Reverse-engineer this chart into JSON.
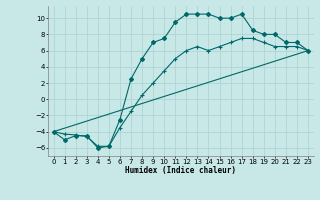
{
  "xlabel": "Humidex (Indice chaleur)",
  "background_color": "#c8e8e8",
  "grid_color": "#b0d4d4",
  "line_color": "#006868",
  "xlim": [
    -0.5,
    23.5
  ],
  "ylim": [
    -7,
    11.5
  ],
  "yticks": [
    -6,
    -4,
    -2,
    0,
    2,
    4,
    6,
    8,
    10
  ],
  "xticks": [
    0,
    1,
    2,
    3,
    4,
    5,
    6,
    7,
    8,
    9,
    10,
    11,
    12,
    13,
    14,
    15,
    16,
    17,
    18,
    19,
    20,
    21,
    22,
    23
  ],
  "curve1_x": [
    0,
    1,
    2,
    3,
    4,
    5,
    6,
    7,
    8,
    9,
    10,
    11,
    12,
    13,
    14,
    15,
    16,
    17,
    18,
    19,
    20,
    21,
    22,
    23
  ],
  "curve1_y": [
    -4,
    -5,
    -4.5,
    -4.5,
    -6,
    -5.8,
    -2.5,
    2.5,
    5,
    7,
    7.5,
    9.5,
    10.5,
    10.5,
    10.5,
    10,
    10,
    10.5,
    8.5,
    8,
    8,
    7,
    7,
    6
  ],
  "curve2_x": [
    0,
    1,
    2,
    3,
    4,
    5,
    6,
    7,
    8,
    9,
    10,
    11,
    12,
    13,
    14,
    15,
    16,
    17,
    18,
    19,
    20,
    21,
    22,
    23
  ],
  "curve2_y": [
    -4,
    -4.3,
    -4.4,
    -4.6,
    -5.8,
    -5.8,
    -3.5,
    -1.5,
    0.5,
    2.0,
    3.5,
    5.0,
    6.0,
    6.5,
    6.0,
    6.5,
    7.0,
    7.5,
    7.5,
    7.0,
    6.5,
    6.5,
    6.5,
    6.0
  ],
  "curve3_x": [
    0,
    23
  ],
  "curve3_y": [
    -4,
    6
  ]
}
